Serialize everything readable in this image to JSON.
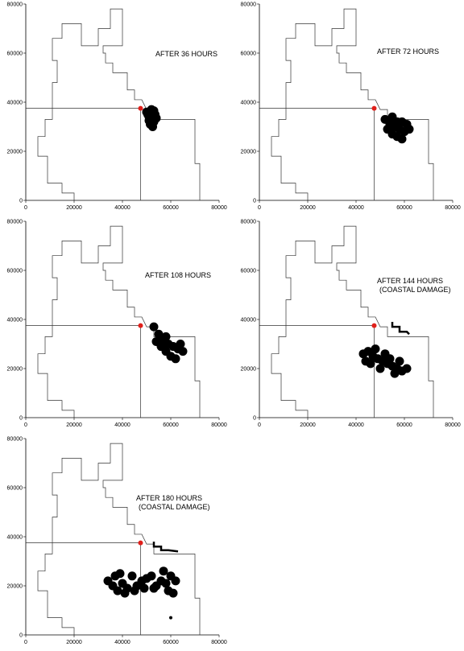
{
  "chart_data": [
    {
      "type": "scatter",
      "annotation": [
        "AFTER 36 HOURS"
      ],
      "xlim": [
        0,
        80000
      ],
      "ylim": [
        0,
        80000
      ],
      "xticks": [
        0,
        20000,
        40000,
        60000,
        80000
      ],
      "yticks": [
        0,
        20000,
        40000,
        60000,
        80000
      ],
      "coastline": {
        "x": [
          20000,
          20000,
          15000,
          15000,
          9000,
          9000,
          5000,
          5000,
          8000,
          8000,
          11000,
          11000,
          13000,
          13000,
          11000,
          11000,
          15000,
          15000,
          23000,
          23000,
          30000,
          30000,
          35000,
          35000,
          40000,
          40000,
          32000,
          32000,
          33000,
          33000,
          36000,
          36000,
          42000,
          42000,
          45000,
          45000,
          48000,
          50000,
          53000,
          53000,
          70000,
          70000,
          72000,
          72000
        ],
        "y": [
          0,
          3000,
          3000,
          7000,
          7000,
          18000,
          18000,
          26000,
          26000,
          33000,
          33000,
          48000,
          48000,
          57000,
          57000,
          66000,
          66000,
          72000,
          72000,
          63000,
          63000,
          70000,
          70000,
          78000,
          78000,
          63000,
          63000,
          60000,
          60000,
          56000,
          56000,
          52000,
          52000,
          45000,
          45000,
          41000,
          41000,
          37000,
          37000,
          33000,
          33000,
          15000,
          15000,
          0
        ]
      },
      "release_point": {
        "x": 47500,
        "y": 37500
      },
      "particles": {
        "x": [
          50000,
          51000,
          52000,
          53000,
          54000,
          51500,
          52500,
          53500,
          50500,
          52000,
          53000,
          51000
        ],
        "y": [
          36000,
          34000,
          33000,
          32000,
          33500,
          31000,
          30000,
          35000,
          35000,
          37000,
          36500,
          32500
        ]
      }
    },
    {
      "type": "scatter",
      "annotation": [
        "AFTER 72 HOURS"
      ],
      "xlim": [
        0,
        80000
      ],
      "ylim": [
        0,
        80000
      ],
      "xticks": [
        0,
        20000,
        40000,
        60000,
        80000
      ],
      "yticks": [
        0,
        20000,
        40000,
        60000,
        80000
      ],
      "coastline": {
        "x": [
          20000,
          20000,
          15000,
          15000,
          9000,
          9000,
          5000,
          5000,
          8000,
          8000,
          11000,
          11000,
          13000,
          13000,
          11000,
          11000,
          15000,
          15000,
          23000,
          23000,
          30000,
          30000,
          35000,
          35000,
          40000,
          40000,
          32000,
          32000,
          33000,
          33000,
          36000,
          36000,
          42000,
          42000,
          45000,
          45000,
          48000,
          50000,
          53000,
          53000,
          70000,
          70000,
          72000,
          72000
        ],
        "y": [
          0,
          3000,
          3000,
          7000,
          7000,
          18000,
          18000,
          26000,
          26000,
          33000,
          33000,
          48000,
          48000,
          57000,
          57000,
          66000,
          66000,
          72000,
          72000,
          63000,
          63000,
          70000,
          70000,
          78000,
          78000,
          63000,
          63000,
          60000,
          60000,
          56000,
          56000,
          52000,
          52000,
          45000,
          45000,
          41000,
          41000,
          37000,
          37000,
          33000,
          33000,
          15000,
          15000,
          0
        ]
      },
      "release_point": {
        "x": 47500,
        "y": 37500
      },
      "particles": {
        "x": [
          52000,
          54000,
          56000,
          58000,
          60000,
          62000,
          55000,
          57000,
          59000,
          53000,
          61000,
          57000,
          55000,
          59000
        ],
        "y": [
          33000,
          31000,
          30000,
          29000,
          28000,
          29000,
          27000,
          26000,
          25000,
          29000,
          31000,
          32000,
          34000,
          32000
        ]
      }
    },
    {
      "type": "scatter",
      "annotation": [
        "AFTER 108 HOURS"
      ],
      "xlim": [
        0,
        80000
      ],
      "ylim": [
        0,
        80000
      ],
      "xticks": [
        0,
        20000,
        40000,
        60000,
        80000
      ],
      "yticks": [
        0,
        20000,
        40000,
        60000,
        80000
      ],
      "coastline": {
        "x": [
          20000,
          20000,
          15000,
          15000,
          9000,
          9000,
          5000,
          5000,
          8000,
          8000,
          11000,
          11000,
          13000,
          13000,
          11000,
          11000,
          15000,
          15000,
          23000,
          23000,
          30000,
          30000,
          35000,
          35000,
          40000,
          40000,
          32000,
          32000,
          33000,
          33000,
          36000,
          36000,
          42000,
          42000,
          45000,
          45000,
          48000,
          50000,
          53000,
          53000,
          70000,
          70000,
          72000,
          72000
        ],
        "y": [
          0,
          3000,
          3000,
          7000,
          7000,
          18000,
          18000,
          26000,
          26000,
          33000,
          33000,
          48000,
          48000,
          57000,
          57000,
          66000,
          66000,
          72000,
          72000,
          63000,
          63000,
          70000,
          70000,
          78000,
          78000,
          63000,
          63000,
          60000,
          60000,
          56000,
          56000,
          52000,
          52000,
          45000,
          45000,
          41000,
          41000,
          37000,
          37000,
          33000,
          33000,
          15000,
          15000,
          0
        ]
      },
      "release_point": {
        "x": 47500,
        "y": 37500
      },
      "particles": {
        "x": [
          53000,
          55000,
          57000,
          59000,
          61000,
          63000,
          65000,
          56000,
          58000,
          60000,
          62000,
          54000,
          64000,
          58000
        ],
        "y": [
          37000,
          34000,
          32000,
          30000,
          29000,
          28000,
          27000,
          29000,
          27000,
          25000,
          24000,
          31000,
          30000,
          33000
        ]
      }
    },
    {
      "type": "scatter",
      "annotation": [
        "AFTER 144 HOURS",
        "(COASTAL DAMAGE)"
      ],
      "xlim": [
        0,
        80000
      ],
      "ylim": [
        0,
        80000
      ],
      "xticks": [
        0,
        20000,
        40000,
        60000,
        80000
      ],
      "yticks": [
        0,
        20000,
        40000,
        60000,
        80000
      ],
      "coastline": {
        "x": [
          20000,
          20000,
          15000,
          15000,
          9000,
          9000,
          5000,
          5000,
          8000,
          8000,
          11000,
          11000,
          13000,
          13000,
          11000,
          11000,
          15000,
          15000,
          23000,
          23000,
          30000,
          30000,
          35000,
          35000,
          40000,
          40000,
          32000,
          32000,
          33000,
          33000,
          36000,
          36000,
          42000,
          42000,
          45000,
          45000,
          48000,
          50000,
          53000,
          53000,
          70000,
          70000,
          72000,
          72000
        ],
        "y": [
          0,
          3000,
          3000,
          7000,
          7000,
          18000,
          18000,
          26000,
          26000,
          33000,
          33000,
          48000,
          48000,
          57000,
          57000,
          66000,
          66000,
          72000,
          72000,
          63000,
          63000,
          70000,
          70000,
          78000,
          78000,
          63000,
          63000,
          60000,
          60000,
          56000,
          56000,
          52000,
          52000,
          45000,
          45000,
          41000,
          41000,
          37000,
          37000,
          33000,
          33000,
          15000,
          15000,
          0
        ]
      },
      "release_point": {
        "x": 47500,
        "y": 37500
      },
      "stranded": {
        "x": [
          55000,
          55000,
          58000,
          58000,
          61000,
          62000
        ],
        "y": [
          39000,
          37000,
          37000,
          35000,
          35000,
          34000
        ]
      },
      "particles": {
        "x": [
          43000,
          45000,
          47000,
          49000,
          51000,
          53000,
          55000,
          57000,
          59000,
          61000,
          46000,
          50000,
          54000,
          58000,
          48000,
          56000,
          44000,
          52000
        ],
        "y": [
          26000,
          27000,
          25000,
          24000,
          23000,
          22000,
          21000,
          20000,
          19000,
          20000,
          22000,
          20000,
          24000,
          23000,
          28000,
          18000,
          23000,
          26000
        ]
      }
    },
    {
      "type": "scatter",
      "annotation": [
        "AFTER 180 HOURS",
        "(COASTAL DAMAGE)"
      ],
      "xlim": [
        0,
        80000
      ],
      "ylim": [
        0,
        80000
      ],
      "xticks": [
        0,
        20000,
        40000,
        60000,
        80000
      ],
      "yticks": [
        0,
        20000,
        40000,
        60000,
        80000
      ],
      "coastline": {
        "x": [
          20000,
          20000,
          15000,
          15000,
          9000,
          9000,
          5000,
          5000,
          8000,
          8000,
          11000,
          11000,
          13000,
          13000,
          11000,
          11000,
          15000,
          15000,
          23000,
          23000,
          30000,
          30000,
          35000,
          35000,
          40000,
          40000,
          32000,
          32000,
          33000,
          33000,
          36000,
          36000,
          42000,
          42000,
          45000,
          45000,
          48000,
          50000,
          53000,
          53000,
          70000,
          70000,
          72000,
          72000
        ],
        "y": [
          0,
          3000,
          3000,
          7000,
          7000,
          18000,
          18000,
          26000,
          26000,
          33000,
          33000,
          48000,
          48000,
          57000,
          57000,
          66000,
          66000,
          72000,
          72000,
          63000,
          63000,
          70000,
          70000,
          78000,
          78000,
          63000,
          63000,
          60000,
          60000,
          56000,
          56000,
          52000,
          52000,
          45000,
          45000,
          41000,
          41000,
          37000,
          37000,
          33000,
          33000,
          15000,
          15000,
          0
        ]
      },
      "release_point": {
        "x": 47500,
        "y": 37500
      },
      "stranded": {
        "x": [
          53000,
          53000,
          56000,
          56000,
          59000,
          63000
        ],
        "y": [
          38000,
          36000,
          36000,
          34500,
          34500,
          34000
        ]
      },
      "particles": {
        "x": [
          34000,
          36000,
          38000,
          40000,
          42000,
          44000,
          46000,
          48000,
          50000,
          52000,
          54000,
          56000,
          58000,
          60000,
          62000,
          37000,
          41000,
          45000,
          49000,
          53000,
          57000,
          61000,
          39000,
          59000,
          60000
        ],
        "y": [
          22000,
          20000,
          18000,
          21000,
          19000,
          24000,
          20000,
          22000,
          23000,
          24000,
          20000,
          22000,
          21000,
          24000,
          22000,
          24000,
          17000,
          18000,
          19000,
          19000,
          26000,
          17000,
          25000,
          18000,
          7000
        ]
      }
    }
  ]
}
